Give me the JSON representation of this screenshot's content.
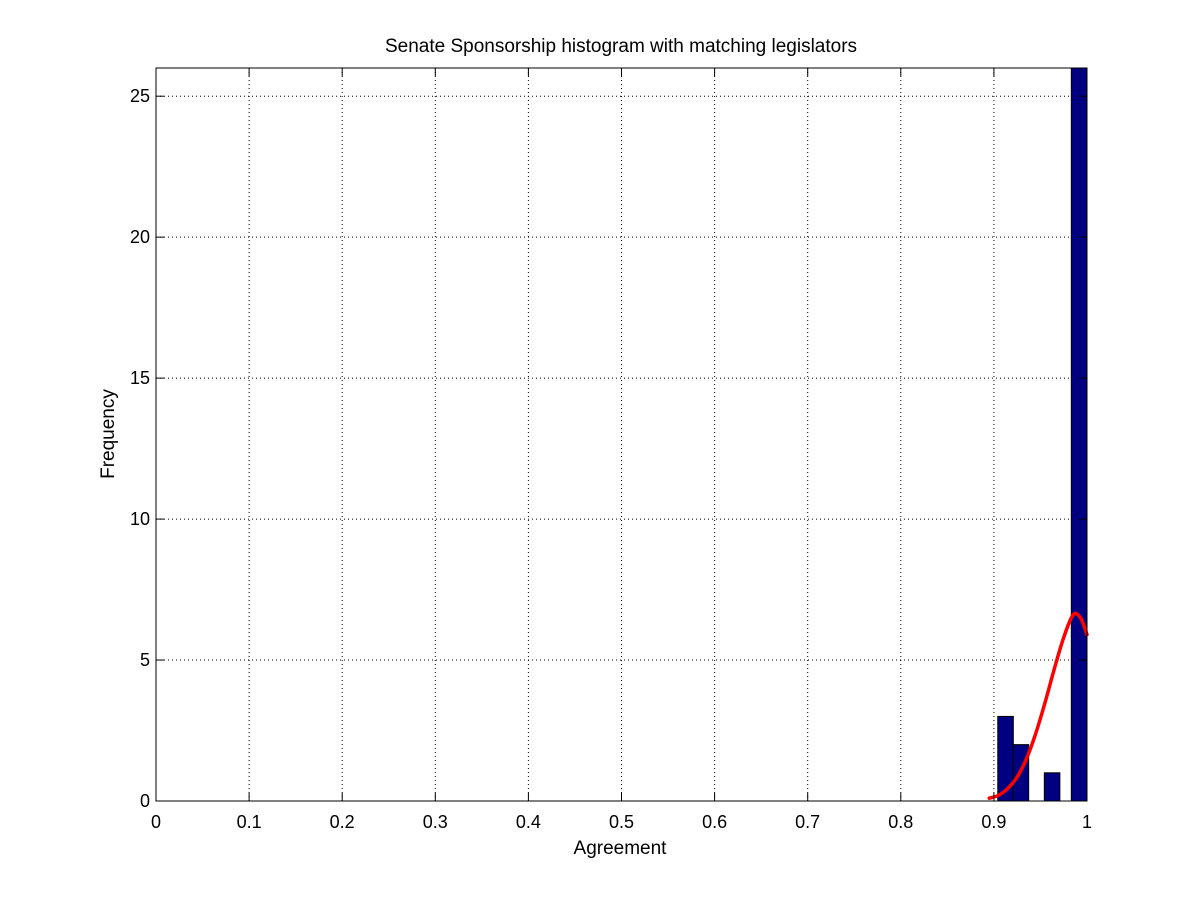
{
  "chart_data": {
    "type": "bar",
    "title": "Senate Sponsorship histogram with matching legislators",
    "xlabel": "Agreement",
    "ylabel": "Frequency",
    "xlim": [
      0,
      1
    ],
    "ylim": [
      0,
      26
    ],
    "grid": true,
    "xticks": [
      "0",
      "0.1",
      "0.2",
      "0.3",
      "0.4",
      "0.5",
      "0.6",
      "0.7",
      "0.8",
      "0.9",
      "1"
    ],
    "yticks": [
      "0",
      "5",
      "10",
      "15",
      "20",
      "25"
    ],
    "bar_width": 0.0167,
    "bar_color": "#000080",
    "series": [
      {
        "type": "histogram",
        "bars": [
          {
            "x": 0.9125,
            "y": 3
          },
          {
            "x": 0.929,
            "y": 2
          },
          {
            "x": 0.9625,
            "y": 1
          },
          {
            "x": 0.9915,
            "y": 26
          }
        ]
      },
      {
        "type": "line",
        "color": "#ff0000",
        "points": [
          {
            "x": 0.895,
            "y": 0.1
          },
          {
            "x": 0.905,
            "y": 0.2
          },
          {
            "x": 0.915,
            "y": 0.45
          },
          {
            "x": 0.925,
            "y": 0.85
          },
          {
            "x": 0.935,
            "y": 1.5
          },
          {
            "x": 0.945,
            "y": 2.4
          },
          {
            "x": 0.955,
            "y": 3.5
          },
          {
            "x": 0.965,
            "y": 4.7
          },
          {
            "x": 0.975,
            "y": 5.8
          },
          {
            "x": 0.985,
            "y": 6.6
          },
          {
            "x": 0.993,
            "y": 6.5
          },
          {
            "x": 1.0,
            "y": 5.9
          }
        ]
      }
    ]
  }
}
